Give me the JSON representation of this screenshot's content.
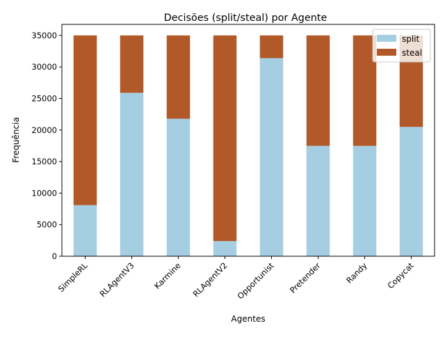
{
  "chart_data": {
    "type": "bar",
    "stacked": true,
    "title": "Decisões (split/steal) por Agente",
    "xlabel": "Agentes",
    "ylabel": "Frequência",
    "categories": [
      "SimpleRL",
      "RLAgentV3",
      "Karmine",
      "RLAgentV2",
      "Opportunist",
      "Pretender",
      "Randy",
      "Copycat"
    ],
    "series": [
      {
        "name": "split",
        "color": "#a6cee3",
        "values": [
          8100,
          25900,
          21800,
          2400,
          31400,
          17500,
          17500,
          20500
        ]
      },
      {
        "name": "steal",
        "color": "#b15928",
        "values": [
          26900,
          9100,
          13200,
          32600,
          3600,
          17500,
          17500,
          14500
        ]
      }
    ],
    "ylim": [
      0,
      36750
    ],
    "yticks": [
      0,
      5000,
      10000,
      15000,
      20000,
      25000,
      30000,
      35000
    ],
    "grid": false,
    "legend_position": "top-right",
    "x_tick_rotation": 45
  }
}
